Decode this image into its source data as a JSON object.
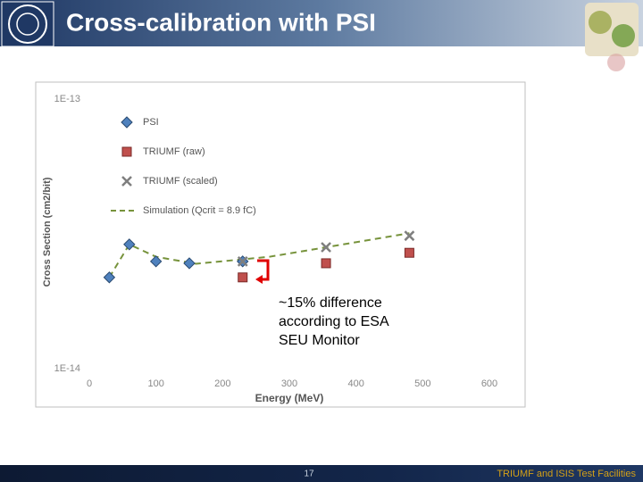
{
  "slide": {
    "title": "Cross-calibration with PSI",
    "annotation": [
      "~15% difference",
      "according to ESA",
      "SEU Monitor"
    ],
    "page_number": "17",
    "footer": "TRIUMF and ISIS Test Facilities"
  },
  "chart_data": {
    "type": "scatter",
    "x_label": "Energy (MeV)",
    "y_label": "Cross Section (cm2/bit)",
    "xlim": [
      0,
      600
    ],
    "xticks": [
      0,
      100,
      200,
      300,
      400,
      500,
      600
    ],
    "ylim": [
      1e-14,
      1e-13
    ],
    "log_y": true,
    "yticks": [
      {
        "value": 1e-14,
        "label": "1E-14"
      },
      {
        "value": 1e-13,
        "label": "1E-13"
      }
    ],
    "grid": false,
    "legend": "upper left",
    "series": [
      {
        "name": "PSI",
        "marker": "diamond",
        "color": "#4f81bd",
        "x": [
          30,
          60,
          100,
          150,
          230
        ],
        "values": [
          2.18e-14,
          2.89e-14,
          2.5e-14,
          2.46e-14,
          2.5e-14
        ]
      },
      {
        "name": "TRIUMF (raw)",
        "marker": "square",
        "color": "#c0504d",
        "x": [
          230,
          355,
          480
        ],
        "values": [
          2.18e-14,
          2.46e-14,
          2.69e-14
        ]
      },
      {
        "name": "TRIUMF (scaled)",
        "marker": "cross",
        "color": "#7f7f7f",
        "x": [
          230,
          355,
          480
        ],
        "values": [
          2.5e-14,
          2.82e-14,
          3.11e-14
        ]
      },
      {
        "name": "Simulation (Qcrit = 8.9 fC)",
        "marker": "dashed-line",
        "color": "#77933c",
        "x": [
          30,
          60,
          100,
          160,
          270,
          355,
          480
        ],
        "values": [
          2.18e-14,
          2.89e-14,
          2.6e-14,
          2.45e-14,
          2.6e-14,
          2.82e-14,
          3.18e-14
        ]
      }
    ]
  }
}
